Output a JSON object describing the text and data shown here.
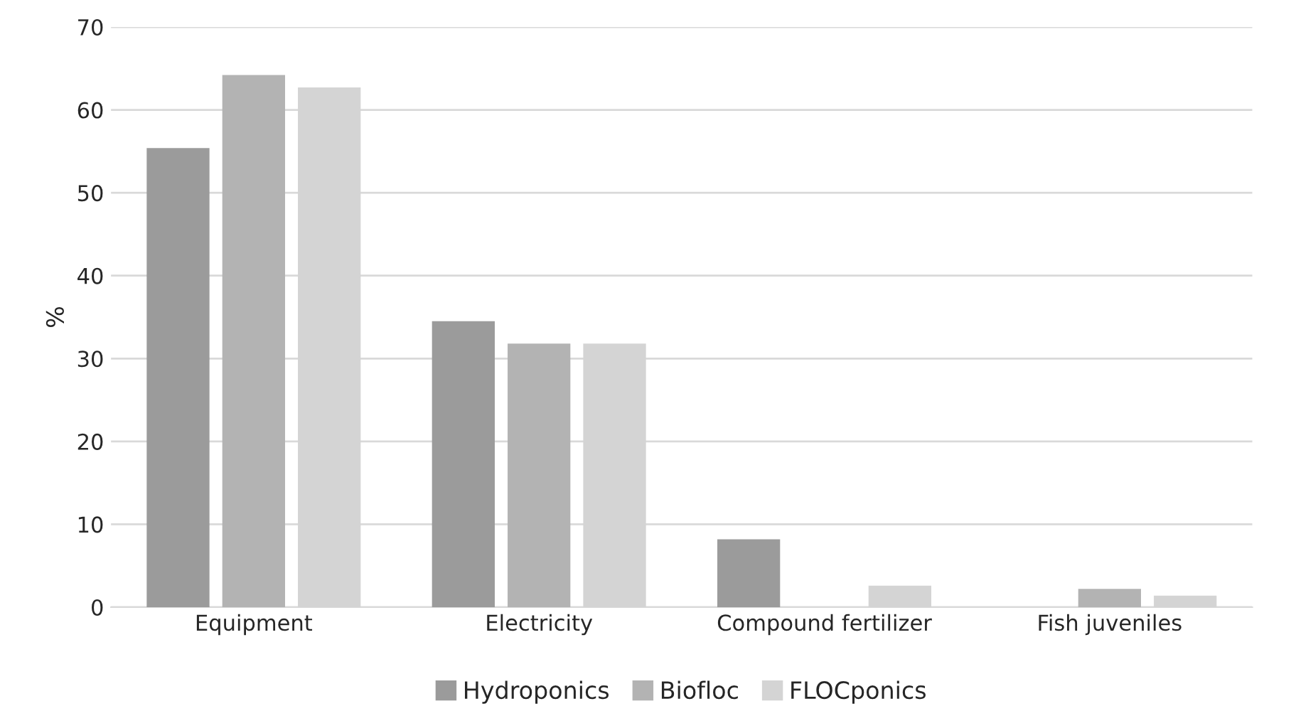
{
  "chart_data": {
    "type": "bar",
    "ylabel": "%",
    "categories": [
      "Equipment",
      "Electricity",
      "Compound fertilizer",
      "Fish juveniles"
    ],
    "series": [
      {
        "name": "Hydroponics",
        "color": "#9b9b9b",
        "values": [
          55.4,
          34.5,
          8.2,
          null
        ]
      },
      {
        "name": "Biofloc",
        "color": "#b3b3b3",
        "values": [
          64.2,
          31.8,
          null,
          2.2
        ]
      },
      {
        "name": "FLOCponics",
        "color": "#d4d4d4",
        "values": [
          62.7,
          31.8,
          2.6,
          1.4
        ]
      }
    ],
    "ylim": [
      0,
      70
    ],
    "yticks": [
      0,
      10,
      20,
      30,
      40,
      50,
      60,
      70
    ],
    "grid": "y",
    "legend": "bottom"
  }
}
